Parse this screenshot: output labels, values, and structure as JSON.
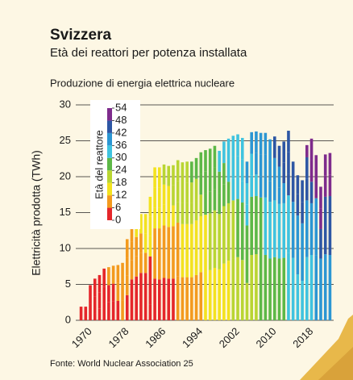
{
  "chart_data": {
    "type": "stacked_bar",
    "title": "Svizzera",
    "subtitle": "Età dei reattori per potenza installata",
    "chart_title": "Produzione di energia elettrica nucleare",
    "y_label": "Elettricità prodotta (TWh)",
    "source": "Fonte: World Nuclear Association 25",
    "colorbar_label": "Età del reattore",
    "colorbar_ticks": [
      0,
      6,
      12,
      18,
      24,
      30,
      36,
      42,
      48,
      54
    ],
    "colorbar_colors": [
      "#e5262a",
      "#f39a1e",
      "#f3e21f",
      "#b9d532",
      "#5db847",
      "#3fc3df",
      "#2b96d3",
      "#2d56a4",
      "#7e2b8c"
    ],
    "x": [
      1969,
      1970,
      1971,
      1972,
      1973,
      1974,
      1975,
      1976,
      1977,
      1978,
      1979,
      1980,
      1981,
      1982,
      1983,
      1984,
      1985,
      1986,
      1987,
      1988,
      1989,
      1990,
      1991,
      1992,
      1993,
      1994,
      1995,
      1996,
      1997,
      1998,
      1999,
      2000,
      2001,
      2002,
      2003,
      2004,
      2005,
      2006,
      2007,
      2008,
      2009,
      2010,
      2011,
      2012,
      2013,
      2014,
      2015,
      2016,
      2017,
      2018,
      2019,
      2020,
      2021,
      2022,
      2023
    ],
    "xlim": [
      1967.5,
      2024.5
    ],
    "xticks": [
      1970,
      1978,
      1986,
      1994,
      2002,
      2010,
      2018
    ],
    "ylim": [
      0,
      30
    ],
    "yticks": [
      0,
      5,
      10,
      15,
      20,
      25,
      30
    ],
    "grid": true,
    "series": [
      {
        "first_year": 1984,
        "values": [
          0,
          0,
          0,
          0,
          0,
          0,
          0,
          0,
          0,
          0,
          0,
          0,
          0,
          0,
          0,
          2.2,
          5.8,
          5.7,
          5.9,
          5.8,
          5.8,
          6.1,
          6.0,
          6.0,
          6.0,
          6.3,
          6.7,
          6.8,
          7.0,
          7.3,
          7.1,
          7.9,
          8.3,
          8.6,
          8.8,
          8.4,
          5.2,
          9.1,
          9.2,
          9.1,
          9.1,
          8.6,
          8.8,
          8.6,
          8.7,
          9.4,
          8.7,
          6.4,
          5.5,
          8.8,
          9.1,
          9.0,
          8.6,
          9.2,
          9.1
        ]
      },
      {
        "first_year": 1979,
        "values": [
          0,
          0,
          0,
          0,
          0,
          0,
          0,
          0,
          0,
          0,
          3.5,
          5.7,
          6.1,
          6.6,
          6.6,
          6.7,
          7.0,
          7.1,
          7.3,
          7.2,
          7.3,
          7.5,
          7.4,
          7.4,
          7.4,
          7.6,
          7.8,
          7.9,
          7.9,
          8.0,
          7.7,
          8.0,
          8.0,
          8.1,
          8.1,
          8.0,
          8.0,
          8.1,
          8.1,
          8.0,
          8.0,
          7.9,
          7.9,
          7.6,
          7.6,
          8.0,
          7.8,
          8.2,
          8.0,
          7.9,
          7.2,
          8.0,
          4.1,
          8.0,
          8.2
        ]
      },
      {
        "first_year": 1972,
        "values": [
          0,
          0,
          0,
          0.9,
          1.6,
          2.3,
          2.5,
          2.6,
          2.7,
          2.8,
          2.7,
          2.7,
          2.8,
          2.8,
          2.8,
          2.8,
          2.9,
          2.9,
          2.9,
          2.9,
          2.9,
          2.9,
          2.9,
          2.9,
          2.9,
          2.9,
          3.0,
          3.0,
          3.0,
          3.0,
          2.9,
          3.0,
          3.0,
          3.0,
          3.0,
          3.0,
          2.9,
          3.0,
          3.0,
          3.0,
          3.0,
          2.9,
          2.9,
          2.3,
          2.8,
          3.0,
          2.6,
          3.0,
          3.0,
          3.0,
          3.0,
          0,
          0,
          0,
          0
        ]
      },
      {
        "first_year": 1971,
        "values": [
          0,
          0,
          2.3,
          2.4,
          2.3,
          2.4,
          2.4,
          2.5,
          2.5,
          2.6,
          2.5,
          2.6,
          2.7,
          2.7,
          2.7,
          2.7,
          2.8,
          2.8,
          2.8,
          2.8,
          2.8,
          2.9,
          2.8,
          2.9,
          2.9,
          2.9,
          2.9,
          3.0,
          3.0,
          3.0,
          3.0,
          3.0,
          3.0,
          3.0,
          3.0,
          3.0,
          3.0,
          3.0,
          3.0,
          3.0,
          3.0,
          2.9,
          3.0,
          2.9,
          2.9,
          3.0,
          2.7,
          2.6,
          3.0,
          3.0,
          3.0,
          3.0,
          2.9,
          3.0,
          3.0
        ]
      },
      {
        "first_year": 1969,
        "values": [
          1.9,
          1.9,
          2.6,
          2.5,
          2.4,
          2.5,
          2.5,
          2.5,
          2.5,
          2.6,
          2.6,
          2.6,
          2.7,
          2.7,
          2.7,
          2.8,
          2.8,
          2.8,
          2.8,
          2.8,
          2.8,
          2.9,
          2.9,
          2.9,
          2.9,
          2.9,
          3.0,
          3.0,
          3.0,
          3.0,
          2.9,
          3.0,
          3.0,
          3.0,
          3.0,
          3.0,
          3.0,
          3.0,
          3.0,
          3.0,
          3.0,
          2.9,
          3.0,
          2.9,
          2.9,
          3.0,
          0.3,
          0,
          0,
          1.7,
          3.0,
          3.0,
          3.0,
          2.9,
          3.0
        ]
      }
    ]
  }
}
